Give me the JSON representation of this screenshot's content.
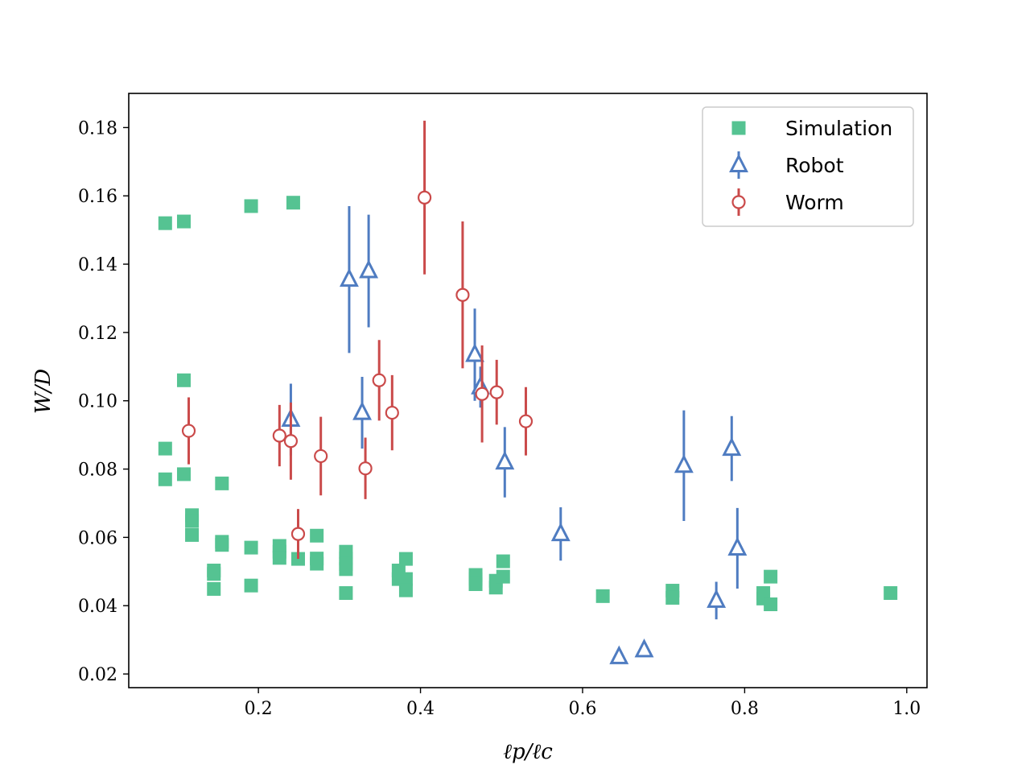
{
  "chart_data": {
    "type": "scatter",
    "xlabel": "ℓp/ℓc",
    "ylabel": "W/D",
    "xlim": [
      0.04,
      1.025
    ],
    "ylim": [
      0.016,
      0.19
    ],
    "xticks": [
      0.2,
      0.4,
      0.6,
      0.8,
      1.0
    ],
    "xtick_labels": [
      "0.2",
      "0.4",
      "0.6",
      "0.8",
      "1.0"
    ],
    "yticks": [
      0.02,
      0.04,
      0.06,
      0.08,
      0.1,
      0.12,
      0.14,
      0.16,
      0.18
    ],
    "ytick_labels": [
      "0.02",
      "0.04",
      "0.06",
      "0.08",
      "0.10",
      "0.12",
      "0.14",
      "0.16",
      "0.18"
    ],
    "legend_position": "top-right",
    "series": [
      {
        "name": "Simulation",
        "color": "#55c392",
        "marker": "square",
        "points": [
          {
            "x": 0.085,
            "y": 0.152
          },
          {
            "x": 0.108,
            "y": 0.1525
          },
          {
            "x": 0.191,
            "y": 0.157
          },
          {
            "x": 0.243,
            "y": 0.158
          },
          {
            "x": 0.108,
            "y": 0.106
          },
          {
            "x": 0.085,
            "y": 0.086
          },
          {
            "x": 0.085,
            "y": 0.077
          },
          {
            "x": 0.108,
            "y": 0.0785
          },
          {
            "x": 0.155,
            "y": 0.0758
          },
          {
            "x": 0.118,
            "y": 0.0665
          },
          {
            "x": 0.118,
            "y": 0.0648
          },
          {
            "x": 0.118,
            "y": 0.0607
          },
          {
            "x": 0.155,
            "y": 0.0587
          },
          {
            "x": 0.155,
            "y": 0.0578
          },
          {
            "x": 0.191,
            "y": 0.057
          },
          {
            "x": 0.145,
            "y": 0.0503
          },
          {
            "x": 0.145,
            "y": 0.0493
          },
          {
            "x": 0.145,
            "y": 0.0449
          },
          {
            "x": 0.191,
            "y": 0.0459
          },
          {
            "x": 0.226,
            "y": 0.0575
          },
          {
            "x": 0.226,
            "y": 0.0558
          },
          {
            "x": 0.226,
            "y": 0.054
          },
          {
            "x": 0.249,
            "y": 0.0537
          },
          {
            "x": 0.272,
            "y": 0.0605
          },
          {
            "x": 0.272,
            "y": 0.0538
          },
          {
            "x": 0.272,
            "y": 0.0523
          },
          {
            "x": 0.308,
            "y": 0.0558
          },
          {
            "x": 0.308,
            "y": 0.0538
          },
          {
            "x": 0.308,
            "y": 0.0522
          },
          {
            "x": 0.308,
            "y": 0.0507
          },
          {
            "x": 0.308,
            "y": 0.0437
          },
          {
            "x": 0.373,
            "y": 0.0503
          },
          {
            "x": 0.373,
            "y": 0.0478
          },
          {
            "x": 0.382,
            "y": 0.0537
          },
          {
            "x": 0.382,
            "y": 0.0478
          },
          {
            "x": 0.382,
            "y": 0.0445
          },
          {
            "x": 0.468,
            "y": 0.049
          },
          {
            "x": 0.468,
            "y": 0.0478
          },
          {
            "x": 0.468,
            "y": 0.0463
          },
          {
            "x": 0.493,
            "y": 0.0473
          },
          {
            "x": 0.493,
            "y": 0.0453
          },
          {
            "x": 0.502,
            "y": 0.053
          },
          {
            "x": 0.502,
            "y": 0.0485
          },
          {
            "x": 0.625,
            "y": 0.0428
          },
          {
            "x": 0.711,
            "y": 0.0444
          },
          {
            "x": 0.711,
            "y": 0.0423
          },
          {
            "x": 0.823,
            "y": 0.0437
          },
          {
            "x": 0.823,
            "y": 0.0421
          },
          {
            "x": 0.832,
            "y": 0.0485
          },
          {
            "x": 0.832,
            "y": 0.0404
          },
          {
            "x": 0.98,
            "y": 0.0437
          }
        ]
      },
      {
        "name": "Robot",
        "color": "#4f7cc1",
        "marker": "triangle-open",
        "points": [
          {
            "x": 0.312,
            "y": 0.1355,
            "err": 0.0215
          },
          {
            "x": 0.336,
            "y": 0.138,
            "err": 0.0165
          },
          {
            "x": 0.24,
            "y": 0.0945,
            "err": 0.0105
          },
          {
            "x": 0.328,
            "y": 0.0965,
            "err": 0.0105
          },
          {
            "x": 0.467,
            "y": 0.1135,
            "err": 0.0135
          },
          {
            "x": 0.474,
            "y": 0.104,
            "err": 0.006
          },
          {
            "x": 0.504,
            "y": 0.082,
            "err": 0.0103
          },
          {
            "x": 0.573,
            "y": 0.061,
            "err": 0.0078
          },
          {
            "x": 0.645,
            "y": 0.025,
            "err": 0
          },
          {
            "x": 0.676,
            "y": 0.027,
            "err": 0
          },
          {
            "x": 0.725,
            "y": 0.081,
            "err": 0.0162
          },
          {
            "x": 0.784,
            "y": 0.086,
            "err": 0.0095
          },
          {
            "x": 0.791,
            "y": 0.0568,
            "err": 0.0118
          },
          {
            "x": 0.765,
            "y": 0.0415,
            "err": 0.0055
          }
        ]
      },
      {
        "name": "Worm",
        "color": "#ca4a4a",
        "marker": "circle-open",
        "points": [
          {
            "x": 0.405,
            "y": 0.1595,
            "err": 0.0225
          },
          {
            "x": 0.452,
            "y": 0.131,
            "err": 0.0215
          },
          {
            "x": 0.349,
            "y": 0.106,
            "err": 0.0118
          },
          {
            "x": 0.365,
            "y": 0.0965,
            "err": 0.011
          },
          {
            "x": 0.476,
            "y": 0.102,
            "err": 0.0142
          },
          {
            "x": 0.494,
            "y": 0.1025,
            "err": 0.0095
          },
          {
            "x": 0.53,
            "y": 0.094,
            "err": 0.01
          },
          {
            "x": 0.114,
            "y": 0.0912,
            "err": 0.0098
          },
          {
            "x": 0.226,
            "y": 0.0898,
            "err": 0.009
          },
          {
            "x": 0.24,
            "y": 0.0882,
            "err": 0.0113
          },
          {
            "x": 0.277,
            "y": 0.0838,
            "err": 0.0115
          },
          {
            "x": 0.332,
            "y": 0.0802,
            "err": 0.009
          },
          {
            "x": 0.249,
            "y": 0.061,
            "err": 0.0073
          }
        ]
      }
    ]
  }
}
